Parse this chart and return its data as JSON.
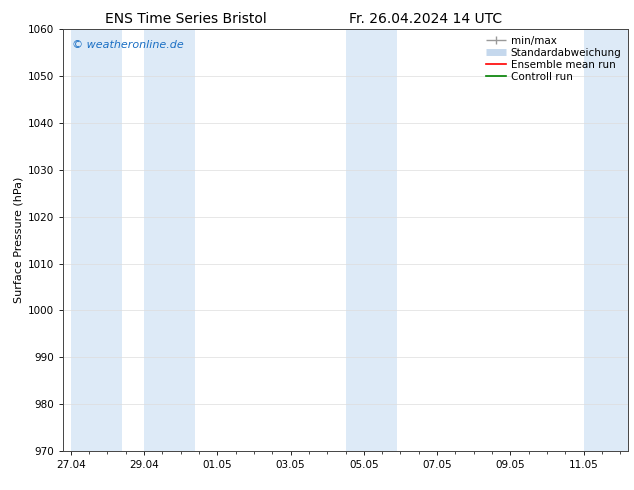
{
  "title_left": "ENS Time Series Bristol",
  "title_right": "Fr. 26.04.2024 14 UTC",
  "ylabel": "Surface Pressure (hPa)",
  "ylim": [
    970,
    1060
  ],
  "yticks": [
    970,
    980,
    990,
    1000,
    1010,
    1020,
    1030,
    1040,
    1050,
    1060
  ],
  "x_tick_labels": [
    "27.04",
    "29.04",
    "01.05",
    "03.05",
    "05.05",
    "07.05",
    "09.05",
    "11.05"
  ],
  "x_tick_positions": [
    0,
    2,
    4,
    6,
    8,
    10,
    12,
    14
  ],
  "x_lim": [
    -0.2,
    15.2
  ],
  "background_color": "#ffffff",
  "plot_bg_color": "#ffffff",
  "shaded_bands": [
    {
      "x_start": 0.0,
      "x_end": 1.4
    },
    {
      "x_start": 2.0,
      "x_end": 3.4
    },
    {
      "x_start": 7.5,
      "x_end": 8.9
    },
    {
      "x_start": 14.0,
      "x_end": 15.2
    }
  ],
  "shaded_color": "#ddeaf7",
  "watermark_text": "© weatheronline.de",
  "watermark_color": "#1a6fc4",
  "watermark_fontsize": 8,
  "legend_entries": [
    {
      "label": "min/max",
      "color": "#999999",
      "linewidth": 1.0,
      "type": "minmax"
    },
    {
      "label": "Standardabweichung",
      "color": "#c5d8ed",
      "linewidth": 5,
      "type": "bar"
    },
    {
      "label": "Ensemble mean run",
      "color": "#ff0000",
      "linewidth": 1.2,
      "type": "line"
    },
    {
      "label": "Controll run",
      "color": "#008000",
      "linewidth": 1.2,
      "type": "line"
    }
  ],
  "title_fontsize": 10,
  "axis_label_fontsize": 8,
  "tick_fontsize": 7.5,
  "legend_fontsize": 7.5,
  "fig_width": 6.34,
  "fig_height": 4.9,
  "dpi": 100
}
